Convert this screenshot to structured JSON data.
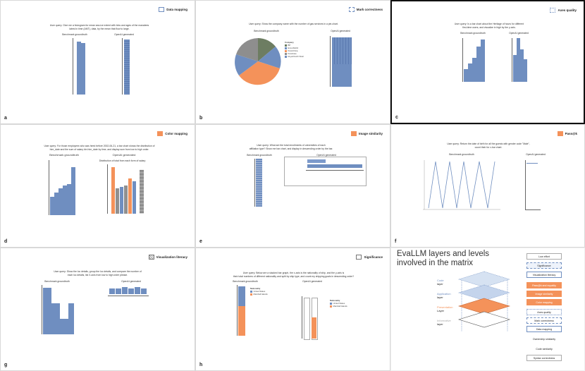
{
  "panels": [
    {
      "id": "a",
      "badge": "Data mapping",
      "query": "User query: Give me a histogram for mean sea-ice extent with bins and ages of the manatees\nlatest in time (AMT), data, by the mean that flow to large.",
      "left_title": "Benchmark groundtruth",
      "right_title": "OpenAI generated"
    },
    {
      "id": "b",
      "badge": "Mark correctness",
      "query": "User query: Show the company name with the number of gas services in a pie-chart.",
      "left_title": "Benchmark groundtruth",
      "right_title": "OpenAI generated"
    },
    {
      "id": "c",
      "badge": "Axes quality",
      "query": "User query: Is a bar chart about the Heritage of hours for different\nfirst-time users, and visualize in high by the y-axis.",
      "left_title": "Benchmark groundtruth",
      "right_title": "OpenAI generated"
    },
    {
      "id": "d",
      "badge": "Color mapping",
      "query": "User query: For those employees who was hired before 2002-06-21, a bar chart shows the distribution of\nhire_date and the sum of salary bin hire_date by time, and display sum from low to high order.",
      "left_title": "Benchmark groundtruth",
      "right_title": "OpenAI generated"
    },
    {
      "id": "e",
      "badge": "Image similarity",
      "query": "User query: What are the total enrollments of universities of each\naffiliation type? Show me bar chart, and display in descending order by the bar.",
      "left_title": "Benchmark groundtruth",
      "right_title": "OpenAI generated"
    },
    {
      "id": "f",
      "badge": "Pass@k",
      "query": "User query: Return the date of birth for all the guests with gender code \"Male\",\ncount their for x-bar chart.",
      "left_title": "Benchmark groundtruth",
      "right_title": "OpenAI generated"
    },
    {
      "id": "g",
      "badge": "Visualization literacy",
      "query": "User query: Show the loc details, group the loc details, and compare the number of\neach loc details, list X-axis from low to high order please.",
      "left_title": "Benchmark groundtruth",
      "right_title": "OpenAI generated"
    },
    {
      "id": "h",
      "badge": "Significance",
      "query": "User query: Below are a stacked bar graph, the x-axis is the nationality of ship, and the y-axis is\ntheir total numbers of different nationality and split by ship type, and count my shipping goals in descending order?",
      "left_title": "Benchmark groundtruth",
      "right_title": "OpenAI generated"
    }
  ],
  "pie_legend": {
    "title": "Company",
    "items": [
      "BP",
      "ExxonMobil",
      "PetroChina",
      "Petrobras",
      "Royal Dutch Shell"
    ]
  },
  "d_chart_title": "Distribution of total from each form of salary",
  "h_legend": {
    "title": "Nationality",
    "items": [
      "United States",
      "Marshall Islands"
    ]
  },
  "diagram": {
    "title_line1": "EvaLLM layers and levels",
    "title_line2": "involved in the matrix",
    "layers": [
      {
        "name": "Code",
        "sub": "layer"
      },
      {
        "name": "Application",
        "sub": "layer"
      },
      {
        "name": "Presentation",
        "sub": "Layer"
      },
      {
        "name": "Informative",
        "sub": "layer"
      }
    ],
    "levels": [
      "Low effort",
      "Significance",
      "Visualization literacy",
      "Pass@k and equality",
      "Image similarity",
      "Color mapping",
      "Axes quality",
      "Mark correctness",
      "Data mapping",
      "Ownership  similarity",
      "Code similarity",
      "Syntax correctness"
    ]
  },
  "colors": {
    "blue": "#6f8ec0",
    "orange": "#f4925a",
    "gray": "#8e8e8e",
    "green": "#6d7d62"
  }
}
